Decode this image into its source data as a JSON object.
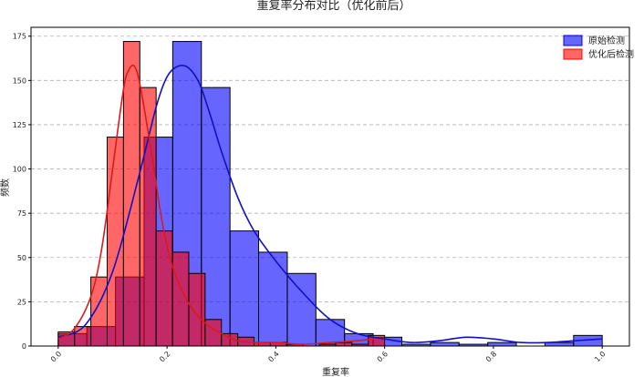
{
  "chart_data": {
    "type": "histogram",
    "title": "重复率分布对比（优化前后）",
    "xlabel": "重复率",
    "ylabel": "频数",
    "xlim": [
      -0.05,
      1.05
    ],
    "ylim": [
      0,
      180
    ],
    "x_ticks": [
      "0.0",
      "0.2",
      "0.4",
      "0.6",
      "0.8",
      "1.0"
    ],
    "y_ticks": [
      "0",
      "25",
      "50",
      "75",
      "100",
      "125",
      "150",
      "175"
    ],
    "grid": "y-dashed",
    "legend_position": "top-right",
    "series": [
      {
        "name": "原始检测",
        "color": "#0000ff",
        "kde_color": "#1010c8",
        "bins": [
          {
            "x0": 0.0,
            "x1": 0.0526,
            "count": 7
          },
          {
            "x0": 0.0526,
            "x1": 0.1053,
            "count": 11
          },
          {
            "x0": 0.1053,
            "x1": 0.1579,
            "count": 39
          },
          {
            "x0": 0.1579,
            "x1": 0.2105,
            "count": 118
          },
          {
            "x0": 0.2105,
            "x1": 0.2632,
            "count": 172
          },
          {
            "x0": 0.2632,
            "x1": 0.3158,
            "count": 146
          },
          {
            "x0": 0.3158,
            "x1": 0.3684,
            "count": 65
          },
          {
            "x0": 0.3684,
            "x1": 0.4211,
            "count": 53
          },
          {
            "x0": 0.4211,
            "x1": 0.4737,
            "count": 41
          },
          {
            "x0": 0.4737,
            "x1": 0.5263,
            "count": 15
          },
          {
            "x0": 0.5263,
            "x1": 0.5789,
            "count": 7
          },
          {
            "x0": 0.5789,
            "x1": 0.6316,
            "count": 5
          },
          {
            "x0": 0.6316,
            "x1": 0.6842,
            "count": 1
          },
          {
            "x0": 0.6842,
            "x1": 0.7368,
            "count": 2
          },
          {
            "x0": 0.7368,
            "x1": 0.7895,
            "count": 1
          },
          {
            "x0": 0.7895,
            "x1": 0.8421,
            "count": 2
          },
          {
            "x0": 0.8421,
            "x1": 0.8947,
            "count": 0
          },
          {
            "x0": 0.8947,
            "x1": 0.9474,
            "count": 2
          },
          {
            "x0": 0.9474,
            "x1": 1.0,
            "count": 6
          }
        ],
        "kde": {
          "x": [
            0.0,
            0.05,
            0.1,
            0.15,
            0.18,
            0.2,
            0.22,
            0.24,
            0.26,
            0.28,
            0.3,
            0.33,
            0.36,
            0.4,
            0.45,
            0.5,
            0.55,
            0.6,
            0.65,
            0.7,
            0.75,
            0.8,
            0.85,
            0.9,
            0.95,
            1.0
          ],
          "y": [
            5,
            12,
            42,
            98,
            135,
            152,
            158,
            157,
            148,
            130,
            110,
            84,
            65,
            48,
            30,
            15,
            7,
            4,
            2,
            3,
            5,
            4,
            2,
            2,
            3,
            4
          ]
        }
      },
      {
        "name": "优化后检测",
        "color": "#ff0000",
        "kde_color": "#d81b1b",
        "bins": [
          {
            "x0": 0.0,
            "x1": 0.03,
            "count": 8
          },
          {
            "x0": 0.03,
            "x1": 0.06,
            "count": 11
          },
          {
            "x0": 0.06,
            "x1": 0.09,
            "count": 39
          },
          {
            "x0": 0.09,
            "x1": 0.12,
            "count": 118
          },
          {
            "x0": 0.12,
            "x1": 0.15,
            "count": 172
          },
          {
            "x0": 0.15,
            "x1": 0.18,
            "count": 146
          },
          {
            "x0": 0.18,
            "x1": 0.21,
            "count": 65
          },
          {
            "x0": 0.21,
            "x1": 0.24,
            "count": 53
          },
          {
            "x0": 0.24,
            "x1": 0.27,
            "count": 41
          },
          {
            "x0": 0.27,
            "x1": 0.3,
            "count": 15
          },
          {
            "x0": 0.3,
            "x1": 0.33,
            "count": 7
          },
          {
            "x0": 0.33,
            "x1": 0.36,
            "count": 5
          },
          {
            "x0": 0.36,
            "x1": 0.39,
            "count": 2
          },
          {
            "x0": 0.39,
            "x1": 0.42,
            "count": 2
          },
          {
            "x0": 0.42,
            "x1": 0.45,
            "count": 1
          },
          {
            "x0": 0.45,
            "x1": 0.48,
            "count": 0
          },
          {
            "x0": 0.48,
            "x1": 0.51,
            "count": 1
          },
          {
            "x0": 0.51,
            "x1": 0.54,
            "count": 2
          },
          {
            "x0": 0.54,
            "x1": 0.57,
            "count": 1
          },
          {
            "x0": 0.57,
            "x1": 0.6,
            "count": 6
          }
        ],
        "kde": {
          "x": [
            0.0,
            0.03,
            0.06,
            0.08,
            0.1,
            0.12,
            0.13,
            0.14,
            0.15,
            0.17,
            0.19,
            0.21,
            0.24,
            0.27,
            0.3,
            0.33,
            0.36,
            0.4,
            0.45,
            0.5,
            0.55,
            0.58
          ],
          "y": [
            4,
            10,
            28,
            55,
            100,
            145,
            156,
            158,
            148,
            112,
            72,
            45,
            24,
            13,
            7,
            3,
            2,
            2,
            1,
            2,
            3,
            4
          ]
        }
      }
    ]
  }
}
